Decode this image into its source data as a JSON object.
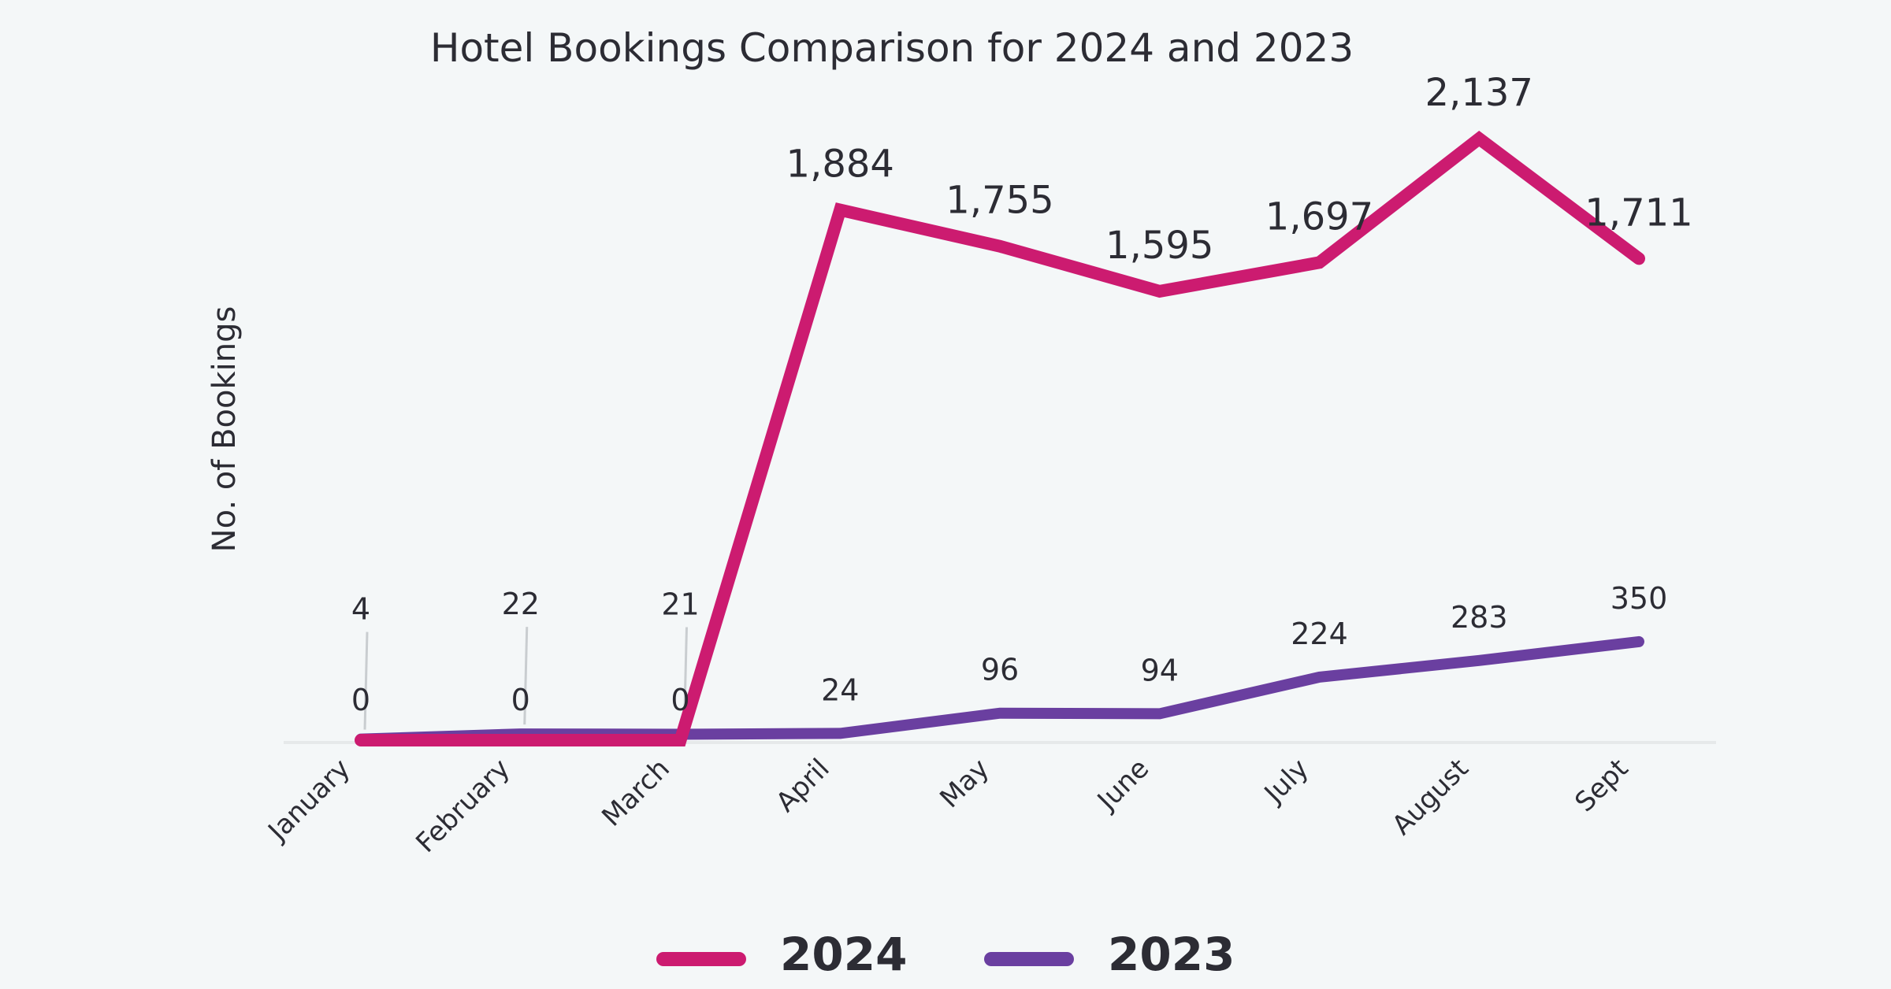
{
  "chart_data": {
    "type": "line",
    "title": "Hotel Bookings Comparison for 2024 and 2023",
    "xlabel": "",
    "ylabel": "No. of Bookings",
    "categories": [
      "January",
      "February",
      "March",
      "April",
      "May",
      "June",
      "July",
      "August",
      "Sept"
    ],
    "ylim": [
      0,
      2350
    ],
    "series": [
      {
        "name": "2024",
        "color": "#cc1b70",
        "values": [
          0,
          0,
          0,
          1884,
          1755,
          1595,
          1697,
          2137,
          1711
        ],
        "labels": [
          "0",
          "0",
          "0",
          "1,884",
          "1,755",
          "1,595",
          "1,697",
          "2,137",
          "1,711"
        ]
      },
      {
        "name": "2023",
        "color": "#6a3fa0",
        "values": [
          4,
          22,
          21,
          24,
          96,
          94,
          224,
          283,
          350
        ],
        "labels": [
          "4",
          "22",
          "21",
          "24",
          "96",
          "94",
          "224",
          "283",
          "350"
        ]
      }
    ],
    "grid": false,
    "legend_position": "bottom"
  }
}
